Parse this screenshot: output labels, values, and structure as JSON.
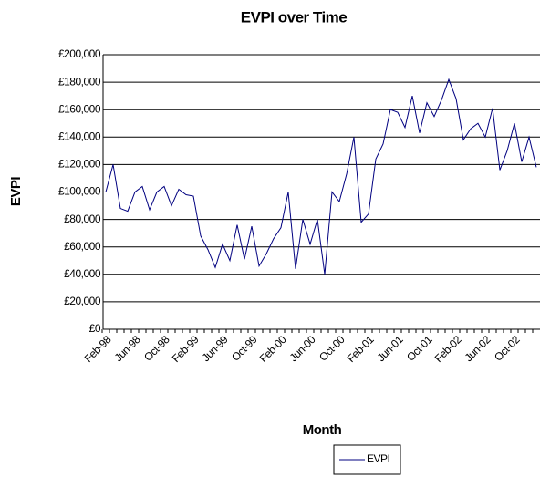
{
  "chart_data": {
    "type": "line",
    "title": "EVPI over Time",
    "x_label": "Month",
    "y_label": "EVPI",
    "categories": [
      "Feb-98",
      null,
      null,
      null,
      "Jun-98",
      null,
      null,
      null,
      "Oct-98",
      null,
      null,
      null,
      "Feb-99",
      null,
      null,
      null,
      "Jun-99",
      null,
      null,
      null,
      "Oct-99",
      null,
      null,
      null,
      "Feb-00",
      null,
      null,
      null,
      "Jun-00",
      null,
      null,
      null,
      "Oct-00",
      null,
      null,
      null,
      "Feb-01",
      null,
      null,
      null,
      "Jun-01",
      null,
      null,
      null,
      "Oct-01",
      null,
      null,
      null,
      "Feb-02",
      null,
      null,
      null,
      "Jun-02",
      null,
      null,
      null,
      "Oct-02",
      null,
      null,
      null
    ],
    "series": [
      {
        "name": "EVPI",
        "color": "#000080",
        "values": [
          100000,
          120000,
          88000,
          86000,
          100000,
          104000,
          87000,
          100000,
          104000,
          90000,
          102000,
          98000,
          97000,
          68000,
          58000,
          45000,
          62000,
          50000,
          76000,
          51000,
          75000,
          46000,
          55000,
          66000,
          74000,
          100000,
          44000,
          80000,
          62000,
          80000,
          40000,
          100000,
          93000,
          113000,
          140000,
          78000,
          84000,
          124000,
          135000,
          160000,
          158000,
          147000,
          170000,
          143000,
          165000,
          155000,
          167000,
          182000,
          168000,
          138000,
          146000,
          150000,
          140000,
          161000,
          116000,
          130000,
          150000,
          122000,
          140000,
          118000
        ]
      }
    ],
    "ylim": [
      0,
      200000
    ],
    "yticks": [
      {
        "value": 0,
        "label": "£0"
      },
      {
        "value": 20000,
        "label": "£20,000"
      },
      {
        "value": 40000,
        "label": "£40,000"
      },
      {
        "value": 60000,
        "label": "£60,000"
      },
      {
        "value": 80000,
        "label": "£80,000"
      },
      {
        "value": 100000,
        "label": "£100,000"
      },
      {
        "value": 120000,
        "label": "£120,000"
      },
      {
        "value": 140000,
        "label": "£140,000"
      },
      {
        "value": 160000,
        "label": "£160,000"
      },
      {
        "value": 180000,
        "label": "£180,000"
      },
      {
        "value": 200000,
        "label": "£200,000"
      }
    ],
    "grid": true
  }
}
